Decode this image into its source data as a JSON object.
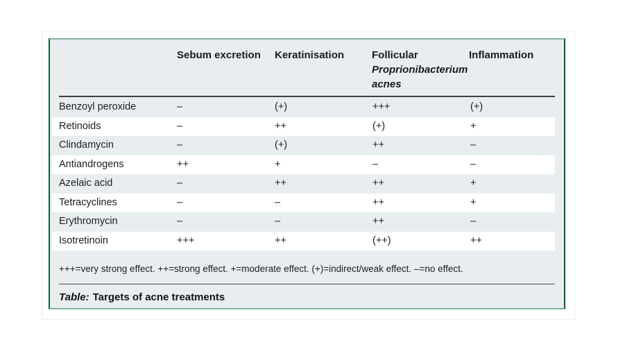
{
  "colors": {
    "table_bg": "#e8eef0",
    "border_green_dark": "#0e5c33",
    "border_green_light": "#7cb296",
    "stripe_white": "#ffffff",
    "rule_dark": "#3e3e3e"
  },
  "header": {
    "col_sebum": "Sebum excretion",
    "col_keratinisation": "Keratinisation",
    "col_follicular_line1": "Follicular",
    "col_follicular_line2": "Proprionibacterium",
    "col_follicular_line3": "acnes",
    "col_inflammation": "Inflammation"
  },
  "rows": [
    {
      "label": "Benzoyl peroxide",
      "sebum": "–",
      "keratinisation": "(+)",
      "follicular": "+++",
      "inflammation": "(+)"
    },
    {
      "label": "Retinoids",
      "sebum": "–",
      "keratinisation": "++",
      "follicular": "(+)",
      "inflammation": "+"
    },
    {
      "label": "Clindamycin",
      "sebum": "–",
      "keratinisation": "(+)",
      "follicular": "++",
      "inflammation": "–"
    },
    {
      "label": "Antiandrogens",
      "sebum": "++",
      "keratinisation": "+",
      "follicular": "–",
      "inflammation": "–"
    },
    {
      "label": "Azelaic acid",
      "sebum": "–",
      "keratinisation": "++",
      "follicular": "++",
      "inflammation": "+"
    },
    {
      "label": "Tetracyclines",
      "sebum": "–",
      "keratinisation": "–",
      "follicular": "++",
      "inflammation": "+"
    },
    {
      "label": "Erythromycin",
      "sebum": "–",
      "keratinisation": "–",
      "follicular": "++",
      "inflammation": "–"
    },
    {
      "label": "Isotretinoin",
      "sebum": "+++",
      "keratinisation": "++",
      "follicular": "(++)",
      "inflammation": "++"
    }
  ],
  "footnote": "+++=very strong effect. ++=strong effect. +=moderate effect. (+)=indirect/weak effect. –=no effect.",
  "caption": {
    "prefix": "Table:",
    "text": "Targets of acne treatments"
  }
}
